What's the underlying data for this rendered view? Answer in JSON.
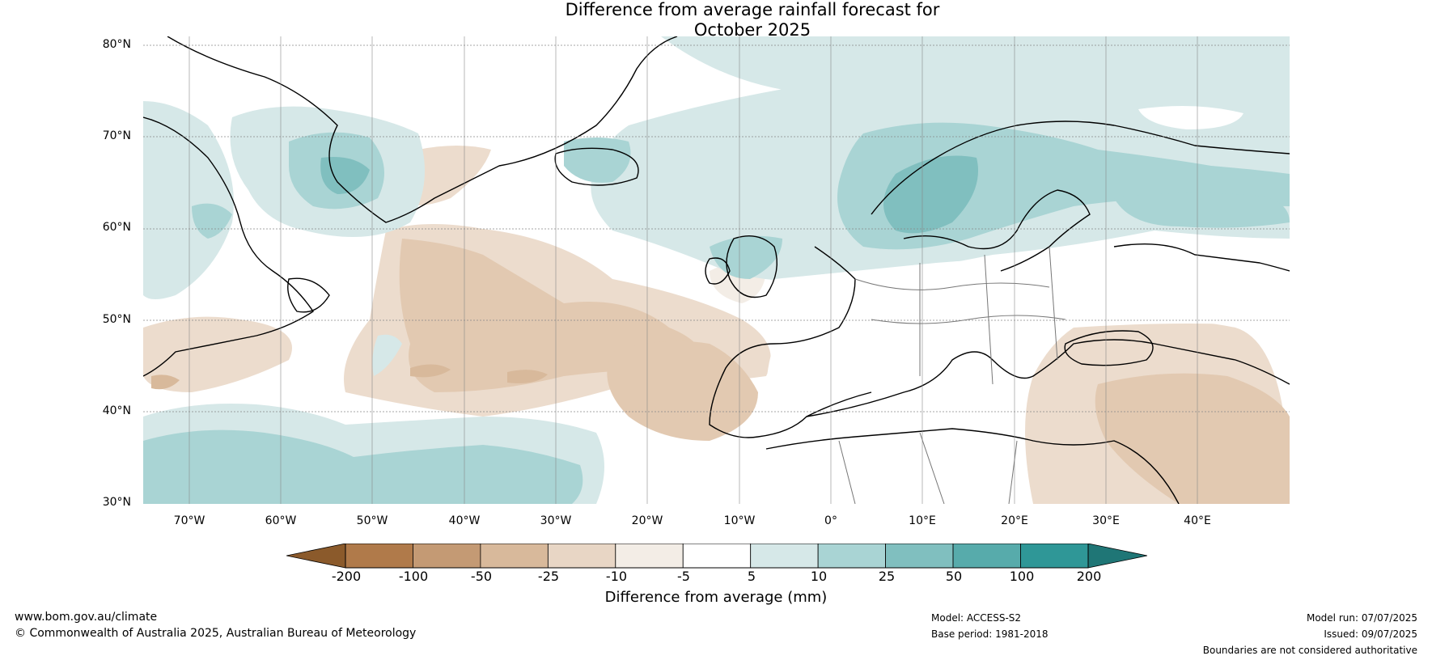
{
  "title": {
    "line1": "Difference from average rainfall forecast for",
    "line2": "October 2025"
  },
  "map": {
    "latitude_labels": [
      "80°N",
      "70°N",
      "60°N",
      "50°N",
      "40°N",
      "30°N"
    ],
    "longitude_labels": [
      "70°W",
      "60°W",
      "50°W",
      "40°W",
      "30°W",
      "20°W",
      "10°W",
      "0°",
      "10°E",
      "20°E",
      "30°E",
      "40°E"
    ],
    "extent": {
      "west": "75°W",
      "east": "50°E",
      "south": "30°N",
      "north": "81°N"
    }
  },
  "colorbar": {
    "title": "Difference from average (mm)",
    "ticks": [
      "-200",
      "-100",
      "-50",
      "-25",
      "-10",
      "-5",
      "5",
      "10",
      "25",
      "50",
      "100",
      "200"
    ],
    "colors": [
      "#8b5a2b",
      "#b07a4a",
      "#c49a74",
      "#d8b99b",
      "#e8d6c5",
      "#f3ede6",
      "#ffffff",
      "#d6e8e8",
      "#a9d4d4",
      "#80bfbf",
      "#57abab",
      "#2f9797",
      "#1f7676"
    ]
  },
  "footer": {
    "website": "www.bom.gov.au/climate",
    "copyright": "© Commonwealth of Australia 2025, Australian Bureau of Meteorology",
    "model": "Model: ACCESS-S2",
    "base_period": "Base period: 1981-2018",
    "model_run": "Model run: 07/07/2025",
    "issued": "Issued: 09/07/2025",
    "disclaimer": "Boundaries are not considered authoritative"
  }
}
